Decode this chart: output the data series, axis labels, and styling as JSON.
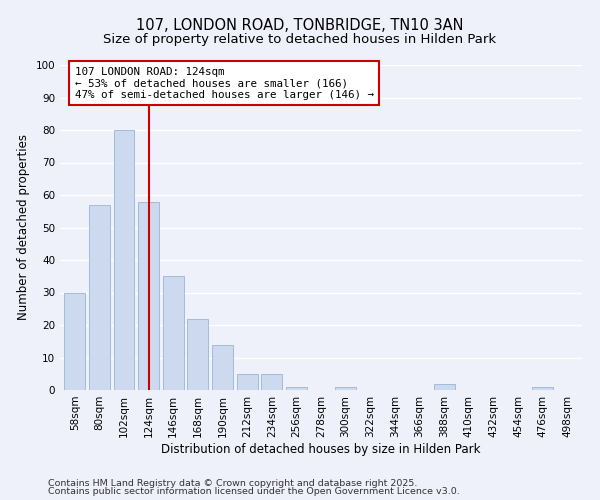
{
  "title_line1": "107, LONDON ROAD, TONBRIDGE, TN10 3AN",
  "title_line2": "Size of property relative to detached houses in Hilden Park",
  "xlabel": "Distribution of detached houses by size in Hilden Park",
  "ylabel": "Number of detached properties",
  "categories": [
    "58sqm",
    "80sqm",
    "102sqm",
    "124sqm",
    "146sqm",
    "168sqm",
    "190sqm",
    "212sqm",
    "234sqm",
    "256sqm",
    "278sqm",
    "300sqm",
    "322sqm",
    "344sqm",
    "366sqm",
    "388sqm",
    "410sqm",
    "432sqm",
    "454sqm",
    "476sqm",
    "498sqm"
  ],
  "values": [
    30,
    57,
    80,
    58,
    35,
    22,
    14,
    5,
    5,
    1,
    0,
    1,
    0,
    0,
    0,
    2,
    0,
    0,
    0,
    1,
    0
  ],
  "bar_color": "#ccd9ee",
  "bar_edge_color": "#a0bcd8",
  "vline_x_idx": 3,
  "vline_color": "#cc0000",
  "annotation_line1": "107 LONDON ROAD: 124sqm",
  "annotation_line2": "← 53% of detached houses are smaller (166)",
  "annotation_line3": "47% of semi-detached houses are larger (146) →",
  "ylim": [
    0,
    100
  ],
  "yticks": [
    0,
    10,
    20,
    30,
    40,
    50,
    60,
    70,
    80,
    90,
    100
  ],
  "footer_line1": "Contains HM Land Registry data © Crown copyright and database right 2025.",
  "footer_line2": "Contains public sector information licensed under the Open Government Licence v3.0.",
  "bg_color": "#eef1fa",
  "grid_color": "#ffffff",
  "annotation_fontsize": 7.8,
  "title_fontsize1": 10.5,
  "title_fontsize2": 9.5,
  "xlabel_fontsize": 8.5,
  "ylabel_fontsize": 8.5,
  "footer_fontsize": 6.8,
  "tick_fontsize": 7.5
}
